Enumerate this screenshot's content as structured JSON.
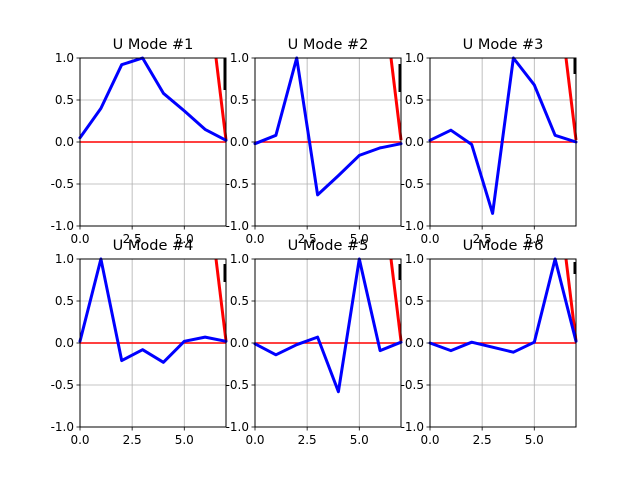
{
  "colors": {
    "mode_line": "#0000ff",
    "zero_line": "#ff0000",
    "grid": "#b0b0b0",
    "axes": "#000000",
    "background": "#ffffff"
  },
  "chart_data": [
    {
      "type": "line",
      "title": "U Mode #1",
      "xlim": [
        0,
        7
      ],
      "ylim": [
        -1.0,
        1.0
      ],
      "xticks": [
        "0.0",
        "2.5",
        "5.0"
      ],
      "yticks": [
        "-1.0",
        "-0.5",
        "0.0",
        "0.5",
        "1.0"
      ],
      "grid": true,
      "x": [
        0,
        1,
        2,
        3,
        4,
        5,
        6,
        7
      ],
      "series": [
        {
          "values": [
            0.05,
            0.4,
            0.92,
            1.0,
            0.58,
            0.37,
            0.15,
            0.02
          ]
        }
      ]
    },
    {
      "type": "line",
      "title": "U Mode #2",
      "xlim": [
        0,
        7
      ],
      "ylim": [
        -1.0,
        1.0
      ],
      "xticks": [
        "0.0",
        "2.5",
        "5.0"
      ],
      "yticks": [
        "-1.0",
        "-0.5",
        "0.0",
        "0.5",
        "1.0"
      ],
      "grid": true,
      "x": [
        0,
        1,
        2,
        3,
        4,
        5,
        6,
        7
      ],
      "series": [
        {
          "values": [
            -0.02,
            0.08,
            1.0,
            -0.63,
            -0.4,
            -0.16,
            -0.07,
            -0.02
          ]
        }
      ]
    },
    {
      "type": "line",
      "title": "U Mode #3",
      "xlim": [
        0,
        7
      ],
      "ylim": [
        -1.0,
        1.0
      ],
      "xticks": [
        "0.0",
        "2.5",
        "5.0"
      ],
      "yticks": [
        "-1.0",
        "-0.5",
        "0.0",
        "0.5",
        "1.0"
      ],
      "grid": true,
      "x": [
        0,
        1,
        2,
        3,
        4,
        5,
        6,
        7
      ],
      "series": [
        {
          "values": [
            0.02,
            0.14,
            -0.03,
            -0.85,
            1.0,
            0.68,
            0.08,
            0.0
          ]
        }
      ]
    },
    {
      "type": "line",
      "title": "U Mode #4",
      "xlim": [
        0,
        7
      ],
      "ylim": [
        -1.0,
        1.0
      ],
      "xticks": [
        "0.0",
        "2.5",
        "5.0"
      ],
      "yticks": [
        "-1.0",
        "-0.5",
        "0.0",
        "0.5",
        "1.0"
      ],
      "grid": true,
      "x": [
        0,
        1,
        2,
        3,
        4,
        5,
        6,
        7
      ],
      "series": [
        {
          "values": [
            0.02,
            1.0,
            -0.21,
            -0.08,
            -0.23,
            0.02,
            0.07,
            0.02
          ]
        }
      ]
    },
    {
      "type": "line",
      "title": "U Mode #5",
      "xlim": [
        0,
        7
      ],
      "ylim": [
        -1.0,
        1.0
      ],
      "xticks": [
        "0.0",
        "2.5",
        "5.0"
      ],
      "yticks": [
        "-1.0",
        "-0.5",
        "0.0",
        "0.5",
        "1.0"
      ],
      "grid": true,
      "x": [
        0,
        1,
        2,
        3,
        4,
        5,
        6,
        7
      ],
      "series": [
        {
          "values": [
            -0.01,
            -0.14,
            -0.02,
            0.07,
            -0.58,
            1.0,
            -0.09,
            0.01
          ]
        }
      ]
    },
    {
      "type": "line",
      "title": "U Mode #6",
      "xlim": [
        0,
        7
      ],
      "ylim": [
        -1.0,
        1.0
      ],
      "xticks": [
        "0.0",
        "2.5",
        "5.0"
      ],
      "yticks": [
        "-1.0",
        "-0.5",
        "0.0",
        "0.5",
        "1.0"
      ],
      "grid": true,
      "x": [
        0,
        1,
        2,
        3,
        4,
        5,
        6,
        7
      ],
      "series": [
        {
          "values": [
            0.0,
            -0.09,
            0.01,
            -0.05,
            -0.11,
            0.01,
            1.0,
            0.02
          ]
        }
      ]
    }
  ]
}
